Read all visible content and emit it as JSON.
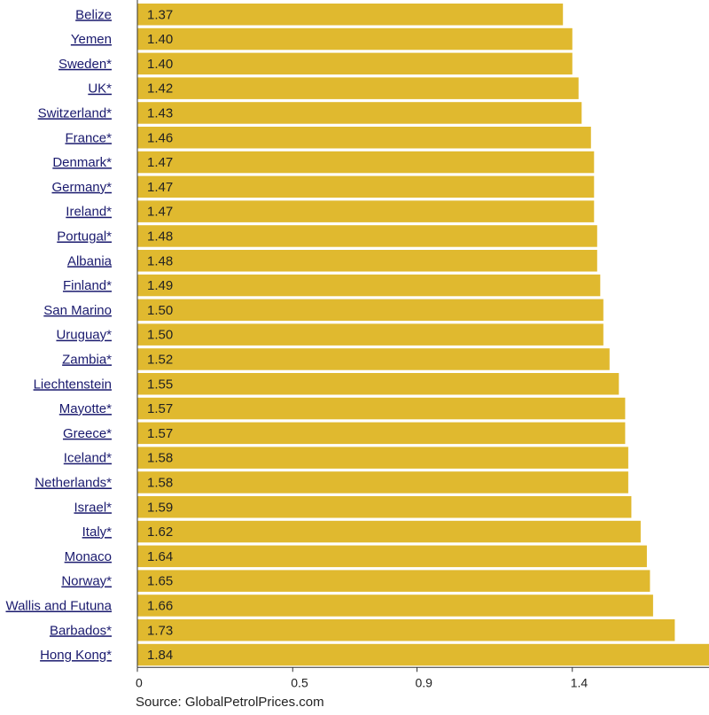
{
  "source": "Source: GlobalPetrolPrices.com",
  "colors": {
    "bar": "#e0b92f",
    "axis": "#333333",
    "label": "#1a1a6e"
  },
  "chart_data": {
    "type": "bar",
    "orientation": "horizontal",
    "title": "",
    "xlabel": "",
    "ylabel": "",
    "xlim": [
      0,
      1.84
    ],
    "grid": false,
    "xticks": [
      {
        "value": 0,
        "label": "0"
      },
      {
        "value": 0.5,
        "label": "0.5"
      },
      {
        "value": 0.9,
        "label": "0.9"
      },
      {
        "value": 1.4,
        "label": "1.4"
      }
    ],
    "categories": [
      "Belize",
      "Yemen",
      "Sweden*",
      "UK*",
      "Switzerland*",
      "France*",
      "Denmark*",
      "Germany*",
      "Ireland*",
      "Portugal*",
      "Albania",
      "Finland*",
      "San Marino",
      "Uruguay*",
      "Zambia*",
      "Liechtenstein",
      "Mayotte*",
      "Greece*",
      "Iceland*",
      "Netherlands*",
      "Israel*",
      "Italy*",
      "Monaco",
      "Norway*",
      "Wallis and Futuna",
      "Barbados*",
      "Hong Kong*"
    ],
    "values": [
      1.37,
      1.4,
      1.4,
      1.42,
      1.43,
      1.46,
      1.47,
      1.47,
      1.47,
      1.48,
      1.48,
      1.49,
      1.5,
      1.5,
      1.52,
      1.55,
      1.57,
      1.57,
      1.58,
      1.58,
      1.59,
      1.62,
      1.64,
      1.65,
      1.66,
      1.73,
      1.84
    ],
    "value_labels": [
      "1.37",
      "1.40",
      "1.40",
      "1.42",
      "1.43",
      "1.46",
      "1.47",
      "1.47",
      "1.47",
      "1.48",
      "1.48",
      "1.49",
      "1.50",
      "1.50",
      "1.52",
      "1.55",
      "1.57",
      "1.57",
      "1.58",
      "1.58",
      "1.59",
      "1.62",
      "1.64",
      "1.65",
      "1.66",
      "1.73",
      "1.84"
    ]
  }
}
